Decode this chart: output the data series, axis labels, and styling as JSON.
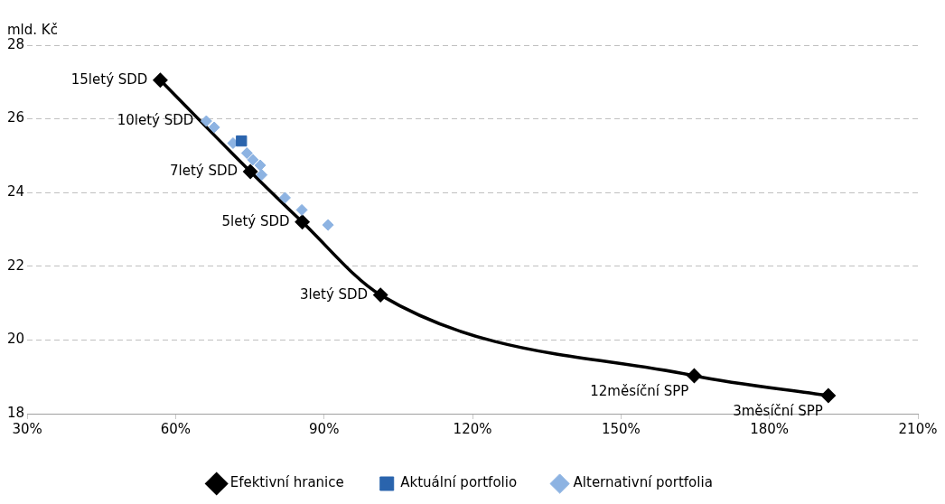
{
  "chart_data": {
    "type": "scatter",
    "ylabel": "mld. Kč",
    "xlim": [
      30,
      210
    ],
    "xticks": [
      {
        "value": 30,
        "label": "30%"
      },
      {
        "value": 60,
        "label": "60%"
      },
      {
        "value": 90,
        "label": "90%"
      },
      {
        "value": 120,
        "label": "120%"
      },
      {
        "value": 150,
        "label": "150%"
      },
      {
        "value": 180,
        "label": "180%"
      },
      {
        "value": 210,
        "label": "210%"
      }
    ],
    "ylim": [
      18,
      28
    ],
    "yticks": [
      18,
      20,
      22,
      24,
      26,
      28
    ],
    "grid": "y",
    "legend": "bottom",
    "series": [
      {
        "name": "Efektivní hranice",
        "type": "line",
        "color": "#000000",
        "marker": "diamond",
        "x": [
          56.9,
          75.1,
          85.6,
          101.4,
          164.8,
          191.9
        ],
        "values": [
          27.05,
          24.57,
          23.2,
          21.22,
          19.03,
          18.49
        ]
      },
      {
        "name": "Aktuální portfolio",
        "color": "#2a64ad",
        "marker": "square",
        "x": [
          73.3
        ],
        "values": [
          25.4
        ]
      },
      {
        "name": "Alternativní portfolia",
        "color": "#8db3e2",
        "marker": "diamond",
        "x": [
          66.2,
          67.8,
          71.6,
          74.4,
          75.6,
          77.1,
          77.4,
          82.1,
          85.5,
          90.8
        ],
        "values": [
          25.94,
          25.77,
          25.34,
          25.07,
          24.89,
          24.74,
          24.48,
          23.86,
          23.53,
          23.12
        ]
      }
    ],
    "annotations": [
      {
        "text": "15letý SDD",
        "x": 56.9,
        "y": 27.05
      },
      {
        "text": "10letý SDD",
        "x": 66.2,
        "y": 25.94
      },
      {
        "text": "7letý SDD",
        "x": 75.1,
        "y": 24.57
      },
      {
        "text": "5letý SDD",
        "x": 85.6,
        "y": 23.2
      },
      {
        "text": "3letý SDD",
        "x": 101.4,
        "y": 21.22
      },
      {
        "text": "12měsíční SPP",
        "x": 164.8,
        "y": 19.03
      },
      {
        "text": "3měsíční SPP",
        "x": 191.9,
        "y": 18.49
      }
    ]
  }
}
